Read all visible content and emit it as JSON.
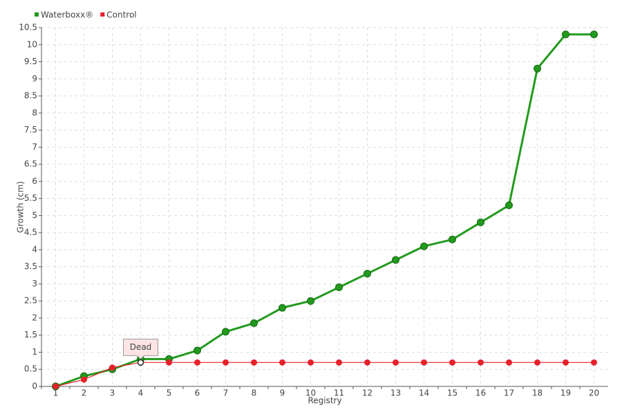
{
  "chart_data": {
    "type": "line",
    "x_label": "Registry",
    "y_label": "Growth (cm)",
    "categories": [
      "1",
      "2",
      "3",
      "4",
      "5",
      "6",
      "7",
      "8",
      "9",
      "10",
      "11",
      "12",
      "13",
      "14",
      "15",
      "16",
      "17",
      "18",
      "19",
      "20"
    ],
    "series": [
      {
        "name": "Waterboxx®",
        "color": "#229a1d",
        "values": [
          0,
          0.3,
          0.5,
          0.8,
          0.8,
          1.05,
          1.6,
          1.85,
          2.3,
          2.5,
          2.9,
          3.3,
          3.7,
          4.1,
          4.3,
          4.8,
          5.3,
          9.3,
          10.3,
          10.3
        ]
      },
      {
        "name": "Control",
        "color": "#e8202a",
        "values": [
          0,
          0.2,
          0.55,
          0.7,
          0.7,
          0.7,
          0.7,
          0.7,
          0.7,
          0.7,
          0.7,
          0.7,
          0.7,
          0.7,
          0.7,
          0.7,
          0.7,
          0.7,
          0.7,
          0.7
        ]
      }
    ],
    "annotations": [
      {
        "text": "Dead",
        "x": "4",
        "series": "Control"
      }
    ],
    "ylim": [
      0,
      10.5
    ],
    "yticks": [
      0,
      0.5,
      1,
      1.5,
      2,
      2.5,
      3,
      3.5,
      4,
      4.5,
      5,
      5.5,
      6,
      6.5,
      7,
      7.5,
      8,
      8.5,
      9,
      9.5,
      10,
      10.5
    ],
    "grid": true,
    "legend": "top-left"
  }
}
